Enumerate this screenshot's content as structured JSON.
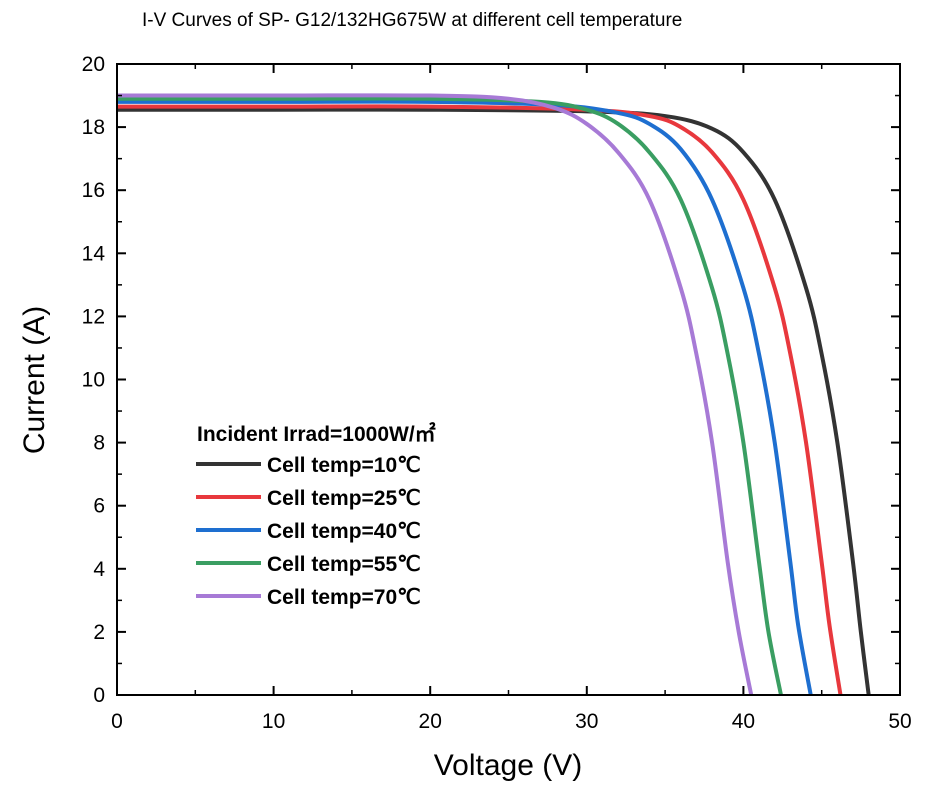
{
  "chart_data": {
    "type": "line",
    "title": "I-V Curves of SP- G12/132HG675W at different cell temperature",
    "xlabel": "Voltage (V)",
    "ylabel": "Current (A)",
    "xlim": [
      0,
      50
    ],
    "ylim": [
      0,
      20
    ],
    "x_ticks": [
      "0",
      "10",
      "20",
      "30",
      "40",
      "50"
    ],
    "y_ticks": [
      "0",
      "2",
      "4",
      "6",
      "8",
      "10",
      "12",
      "14",
      "16",
      "18",
      "20"
    ],
    "grid": false,
    "legend_title": "Incident Irrad=1000W/㎡",
    "legend_position": "lower-left",
    "series": [
      {
        "name": "Cell temp=10℃",
        "color": "#333333",
        "x": [
          0,
          10,
          20,
          30,
          35,
          38,
          40,
          42,
          44,
          45,
          46,
          47,
          47.5,
          48.0
        ],
        "y": [
          18.55,
          18.55,
          18.55,
          18.5,
          18.35,
          17.95,
          17.2,
          15.7,
          12.9,
          10.8,
          8.0,
          4.2,
          2.0,
          0
        ]
      },
      {
        "name": "Cell temp=25℃",
        "color": "#e8383d",
        "x": [
          0,
          10,
          20,
          30,
          34,
          36,
          38,
          40,
          42,
          43,
          44,
          45,
          45.5,
          46.2
        ],
        "y": [
          18.65,
          18.65,
          18.65,
          18.55,
          18.35,
          18.0,
          17.2,
          15.7,
          12.9,
          10.8,
          8.0,
          4.2,
          2.2,
          0
        ]
      },
      {
        "name": "Cell temp=40℃",
        "color": "#1e6fd0",
        "x": [
          0,
          10,
          20,
          28,
          32,
          34,
          36,
          38,
          40,
          41,
          42,
          43,
          43.5,
          44.3
        ],
        "y": [
          18.8,
          18.8,
          18.8,
          18.7,
          18.45,
          18.1,
          17.3,
          15.7,
          12.9,
          10.8,
          8.0,
          4.2,
          2.2,
          0
        ]
      },
      {
        "name": "Cell temp=55℃",
        "color": "#3a9e62",
        "x": [
          0,
          10,
          20,
          27,
          30,
          32,
          34,
          36,
          38,
          39,
          40,
          41,
          41.6,
          42.4
        ],
        "y": [
          18.9,
          18.9,
          18.9,
          18.8,
          18.55,
          18.1,
          17.2,
          15.7,
          12.9,
          10.8,
          8.0,
          4.2,
          2.0,
          0
        ]
      },
      {
        "name": "Cell temp=70℃",
        "color": "#a77ad6",
        "x": [
          0,
          10,
          20,
          25,
          28,
          30,
          32,
          34,
          36,
          37,
          38,
          39,
          39.7,
          40.5
        ],
        "y": [
          19.0,
          19.0,
          19.0,
          18.9,
          18.6,
          18.1,
          17.2,
          15.7,
          12.9,
          10.8,
          8.0,
          4.2,
          2.0,
          0
        ]
      }
    ]
  }
}
